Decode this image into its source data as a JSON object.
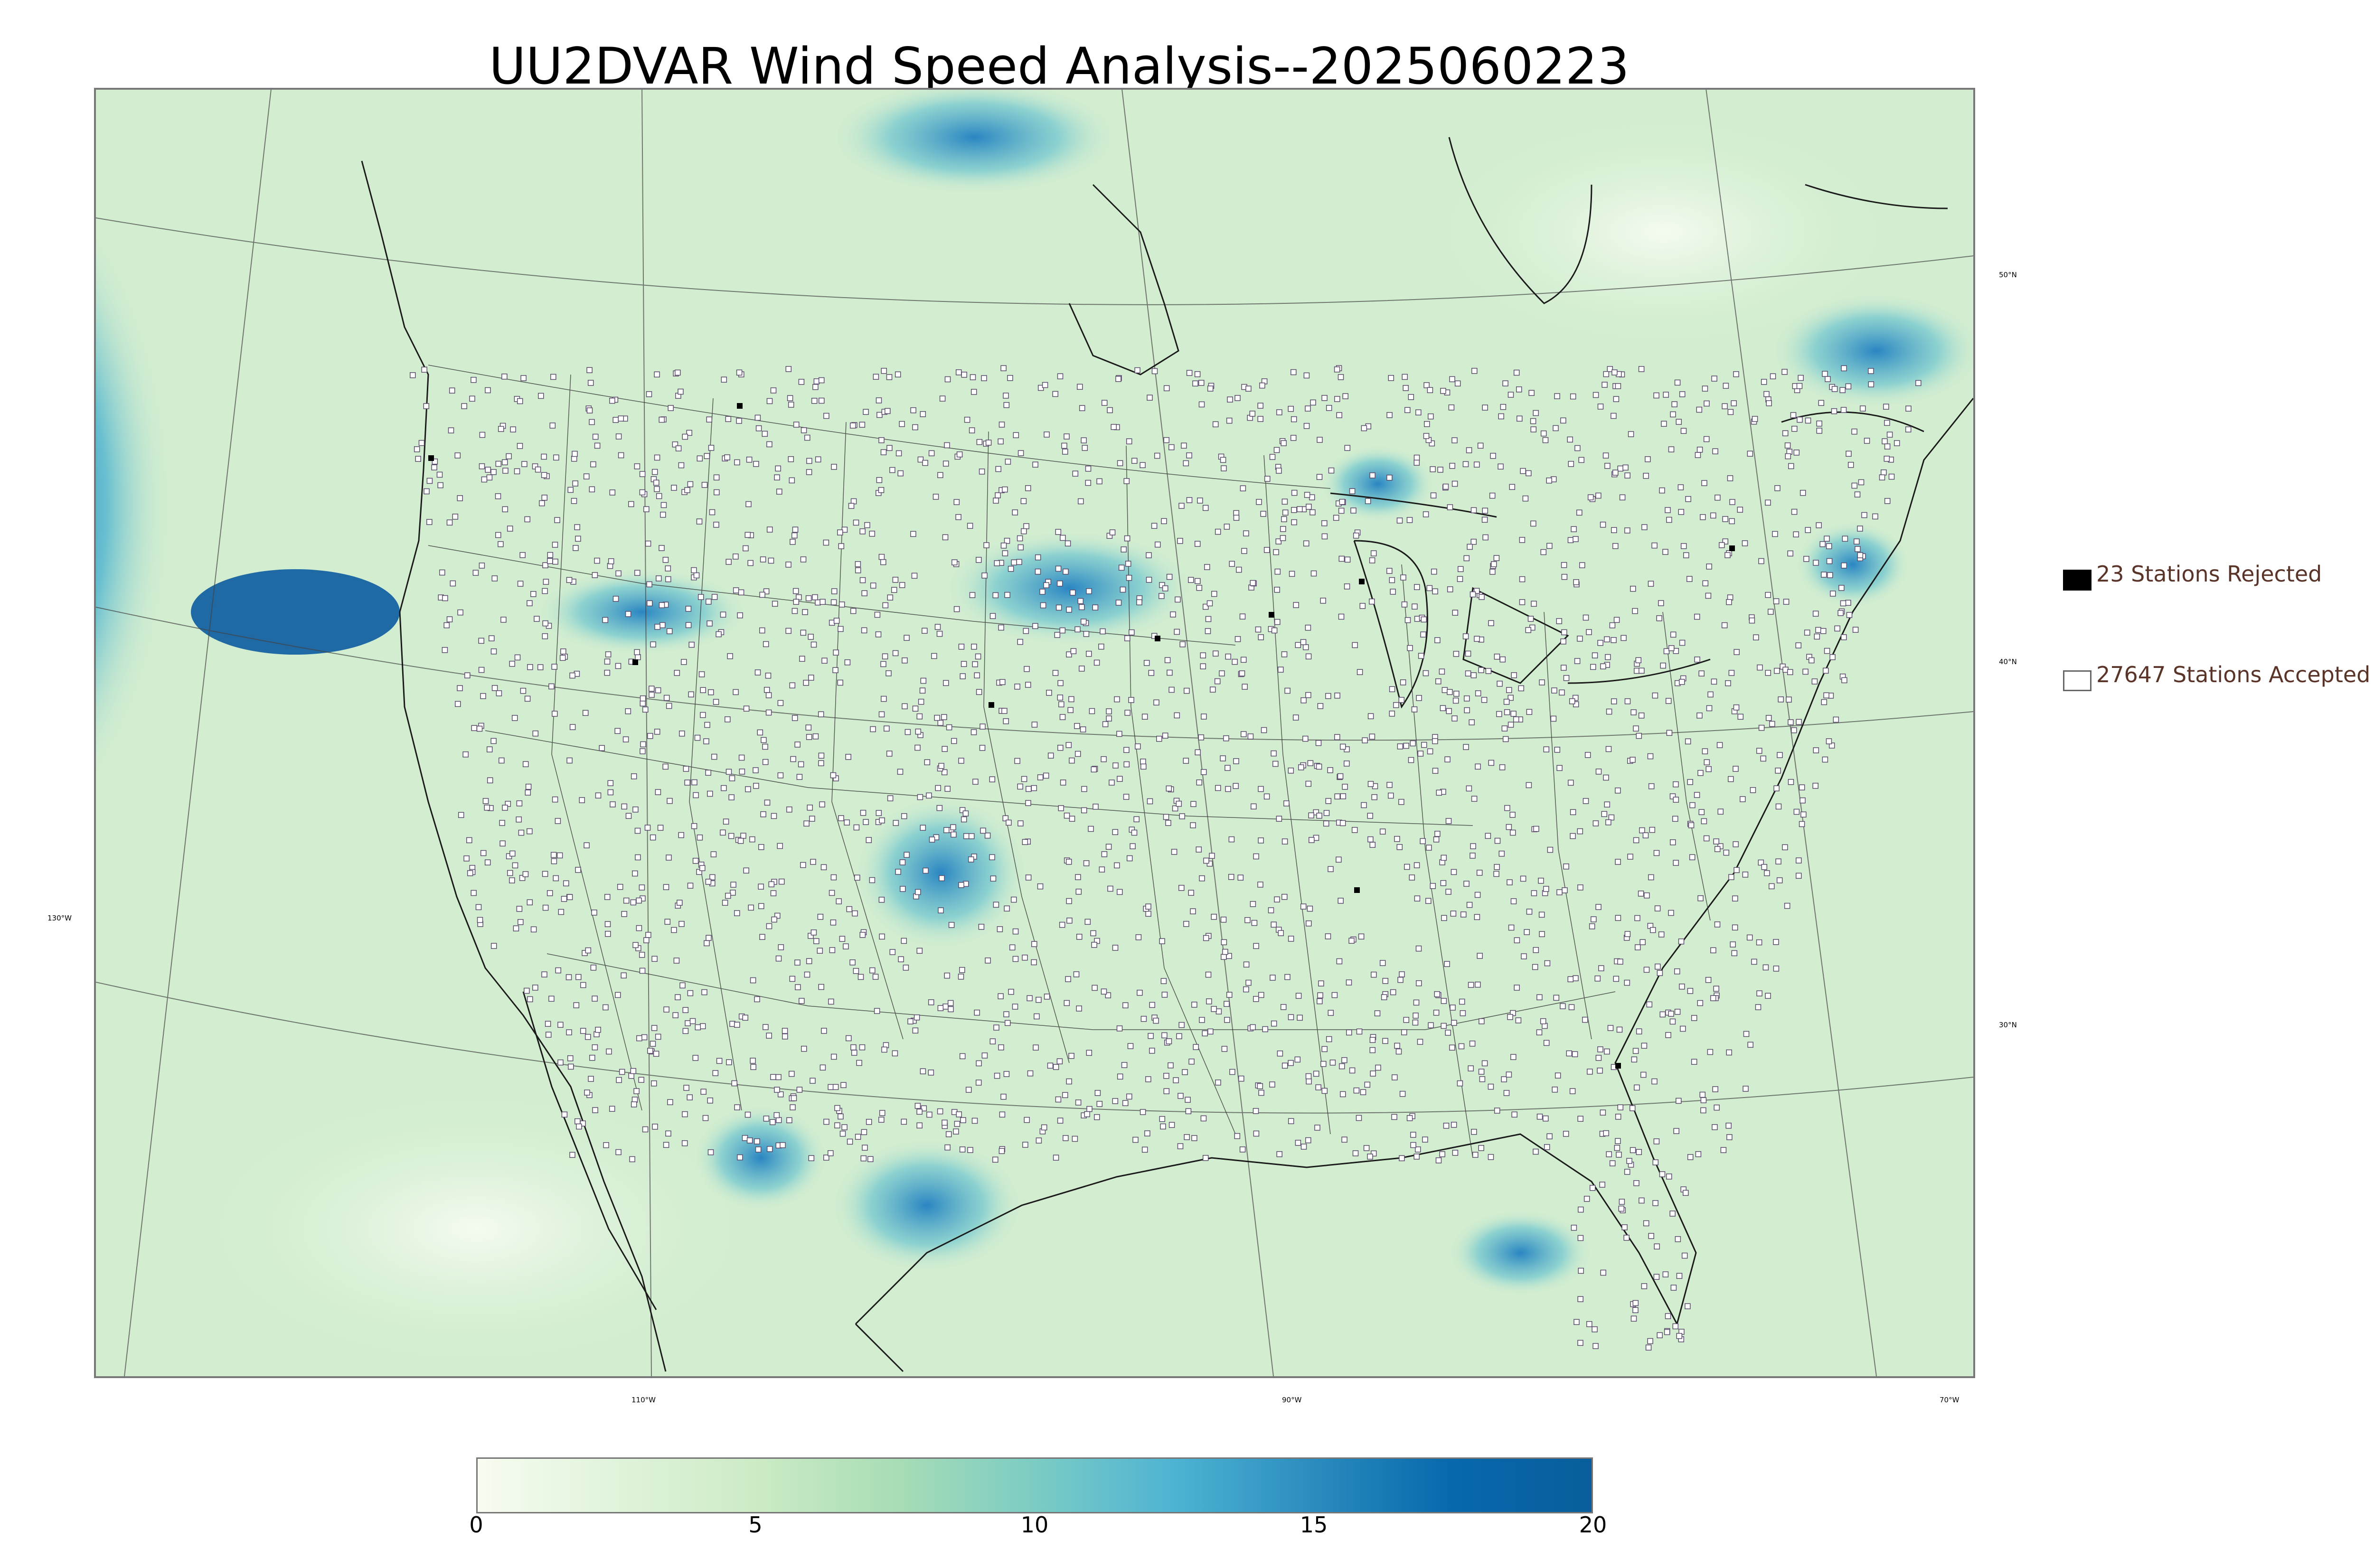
{
  "title": "UU2DVAR Wind Speed Analysis--2025060223",
  "lat_labels": [
    "50°N",
    "40°N",
    "30°N"
  ],
  "lon_labels": [
    "130°W",
    "110°W",
    "90°W",
    "70°W"
  ],
  "legend": {
    "rejected": "23 Stations Rejected",
    "accepted": "27647 Stations Accepted",
    "rejected_color": "#000000",
    "accepted_color": "#ffffff"
  },
  "colorbar": {
    "ticks": [
      "0",
      "5",
      "10",
      "15",
      "20"
    ],
    "min": 0,
    "max": 20,
    "colors": [
      "#f7fcf0",
      "#e0f3db",
      "#ccebc5",
      "#a8ddb5",
      "#7bccc4",
      "#4eb3d3",
      "#2b8cbe",
      "#0868ac",
      "#085e9c"
    ]
  },
  "colors": {
    "ocean_pacific": "#1c6fb5",
    "land_base": "#d3eed2",
    "lines": "#222222"
  }
}
